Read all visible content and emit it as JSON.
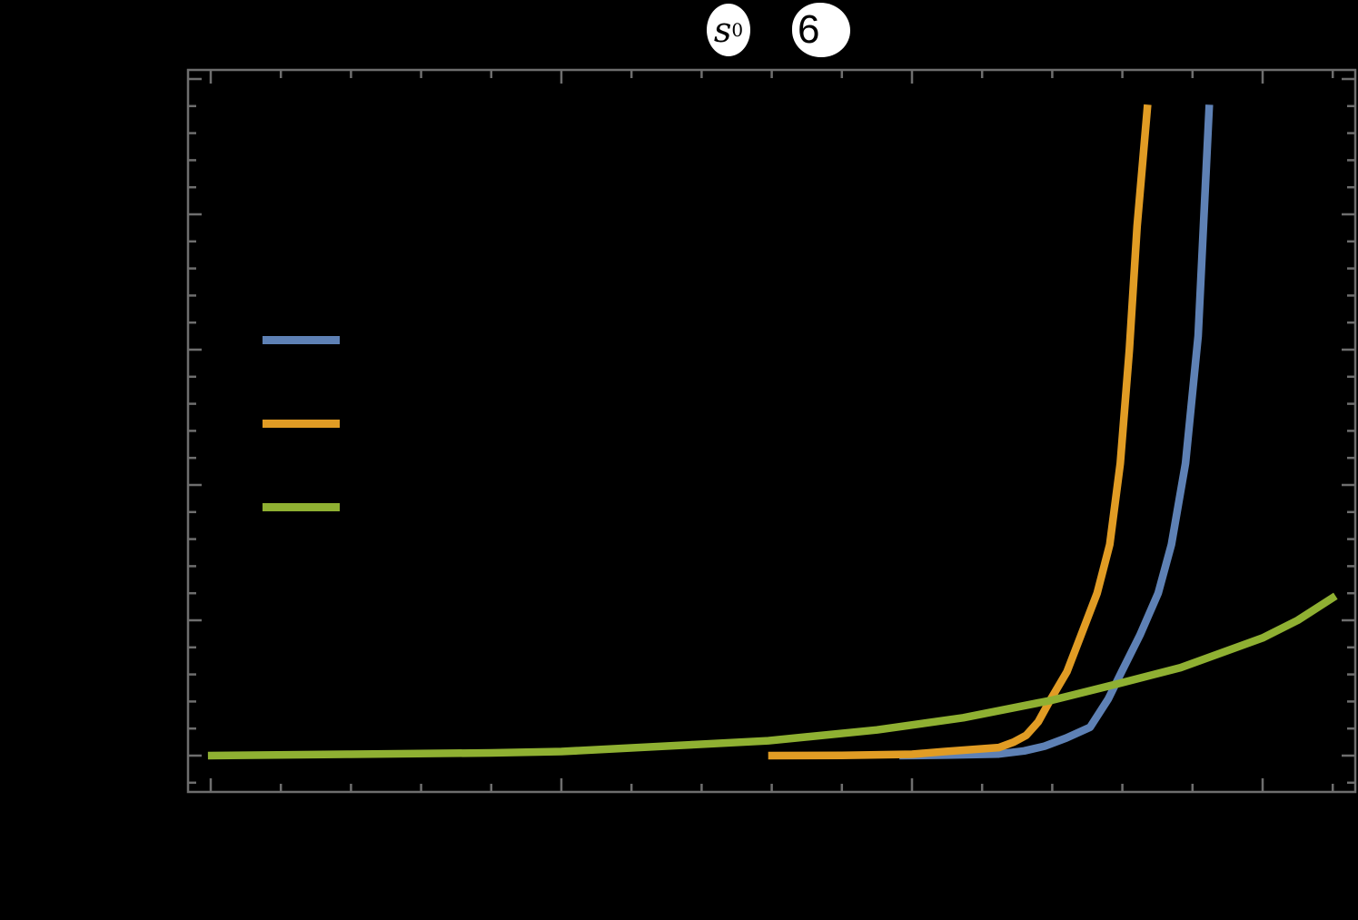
{
  "title": {
    "symbol": "s",
    "subscript": "0",
    "equals": "=",
    "value": "6"
  },
  "colors": {
    "background": "#000000",
    "frame": "#6e6e6e",
    "series_blue": "#5e81b5",
    "series_orange": "#e19c24",
    "series_green": "#8fb032",
    "title_halo": "#ffffff"
  },
  "legend": {
    "items": [
      {
        "label": "",
        "color": "#5e81b5"
      },
      {
        "label": "",
        "color": "#e19c24"
      },
      {
        "label": "",
        "color": "#8fb032"
      }
    ]
  },
  "axes": {
    "xlabel": "",
    "ylabel": ""
  },
  "chart_data": {
    "type": "line",
    "title": "s₀ = 6",
    "xlabel": "",
    "ylabel": "",
    "xlim": [
      -0.32,
      16.33
    ],
    "ylim": [
      -0.27,
      5.07
    ],
    "grid": false,
    "legend_position": "upper-left inside",
    "x_major_ticks": [
      0,
      5,
      10,
      15
    ],
    "x_minor_step": 1,
    "x_tick_labels": [],
    "y_major_ticks": [
      0,
      1,
      2,
      3,
      4,
      5
    ],
    "y_minor_step": 0.2,
    "y_tick_labels": [],
    "series": [
      {
        "name": "",
        "color": "#5e81b5",
        "x": [
          9.82,
          10.5,
          11.24,
          11.6,
          11.89,
          12.2,
          12.54,
          12.8,
          12.99,
          13.25,
          13.51,
          13.7,
          13.9,
          14.08,
          14.24
        ],
        "y": [
          0.0,
          0.004,
          0.012,
          0.035,
          0.07,
          0.13,
          0.21,
          0.42,
          0.62,
          0.89,
          1.2,
          1.56,
          2.16,
          3.1,
          4.81
        ]
      },
      {
        "name": "",
        "color": "#e19c24",
        "x": [
          7.95,
          9.0,
          10.0,
          10.47,
          11.24,
          11.45,
          11.63,
          11.8,
          11.96,
          12.21,
          12.41,
          12.64,
          12.82,
          12.97,
          13.1,
          13.21,
          13.36
        ],
        "y": [
          0.0,
          0.002,
          0.01,
          0.03,
          0.06,
          0.1,
          0.15,
          0.25,
          0.4,
          0.62,
          0.89,
          1.2,
          1.56,
          2.16,
          3.0,
          3.91,
          4.81
        ]
      },
      {
        "name": "",
        "color": "#8fb032",
        "x": [
          -0.04,
          2.0,
          4.0,
          5.0,
          6.84,
          7.95,
          9.5,
          10.73,
          12.0,
          12.93,
          13.83,
          15.0,
          15.5,
          16.04
        ],
        "y": [
          0.0,
          0.01,
          0.02,
          0.03,
          0.08,
          0.11,
          0.19,
          0.28,
          0.41,
          0.53,
          0.65,
          0.87,
          1.0,
          1.18
        ]
      }
    ]
  }
}
